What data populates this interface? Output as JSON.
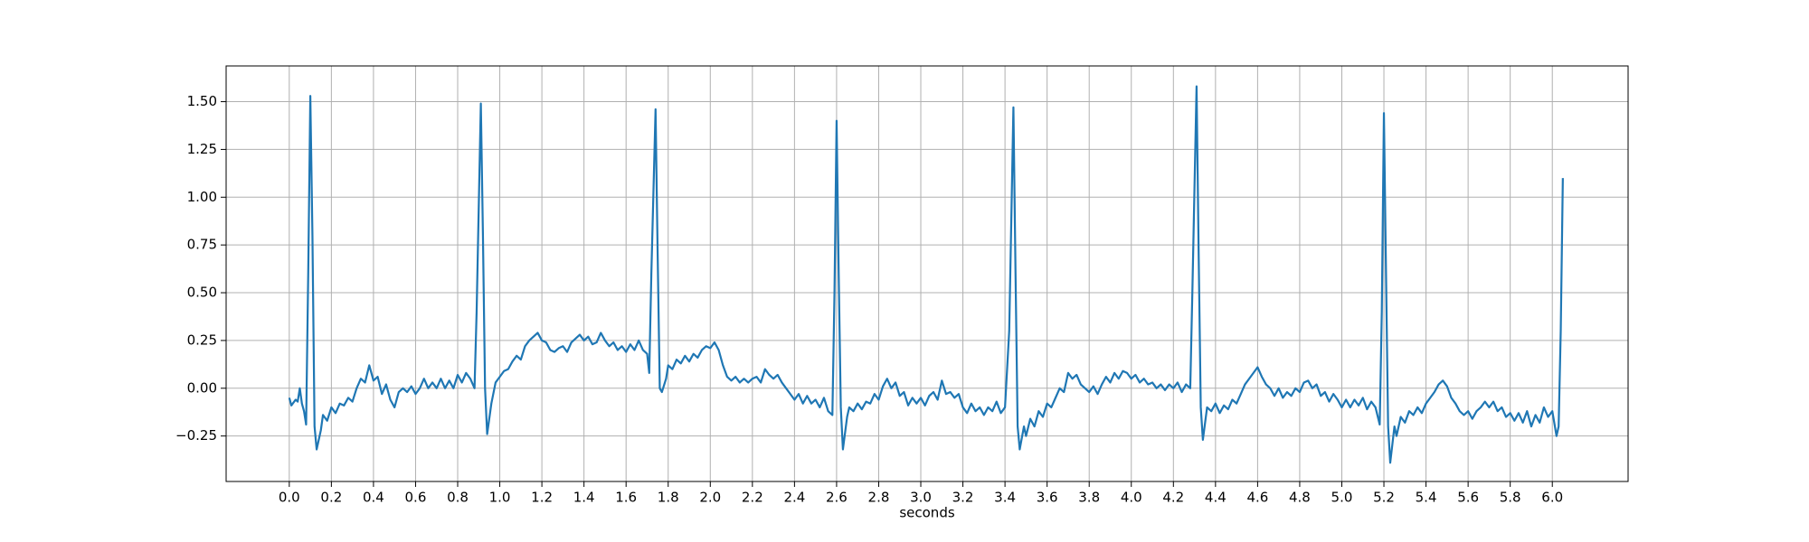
{
  "chart_data": {
    "type": "line",
    "xlabel": "seconds",
    "color": "#1f77b4",
    "grid": true,
    "xlim": [
      -0.3,
      6.36
    ],
    "ylim": [
      -0.488,
      1.687
    ],
    "xticks": [
      {
        "value": 0,
        "label": "0.0"
      },
      {
        "value": 0.2,
        "label": "0.2"
      },
      {
        "value": 0.4,
        "label": "0.4"
      },
      {
        "value": 0.6,
        "label": "0.6"
      },
      {
        "value": 0.8,
        "label": "0.8"
      },
      {
        "value": 1,
        "label": "1.0"
      },
      {
        "value": 1.2,
        "label": "1.2"
      },
      {
        "value": 1.4,
        "label": "1.4"
      },
      {
        "value": 1.6,
        "label": "1.6"
      },
      {
        "value": 1.8,
        "label": "1.8"
      },
      {
        "value": 2,
        "label": "2.0"
      },
      {
        "value": 2.2,
        "label": "2.2"
      },
      {
        "value": 2.4,
        "label": "2.4"
      },
      {
        "value": 2.6,
        "label": "2.6"
      },
      {
        "value": 2.8,
        "label": "2.8"
      },
      {
        "value": 3,
        "label": "3.0"
      },
      {
        "value": 3.2,
        "label": "3.2"
      },
      {
        "value": 3.4,
        "label": "3.4"
      },
      {
        "value": 3.6,
        "label": "3.6"
      },
      {
        "value": 3.8,
        "label": "3.8"
      },
      {
        "value": 4,
        "label": "4.0"
      },
      {
        "value": 4.2,
        "label": "4.2"
      },
      {
        "value": 4.4,
        "label": "4.4"
      },
      {
        "value": 4.6,
        "label": "4.6"
      },
      {
        "value": 4.8,
        "label": "4.8"
      },
      {
        "value": 5,
        "label": "5.0"
      },
      {
        "value": 5.2,
        "label": "5.2"
      },
      {
        "value": 5.4,
        "label": "5.4"
      },
      {
        "value": 5.6,
        "label": "5.6"
      },
      {
        "value": 5.8,
        "label": "5.8"
      },
      {
        "value": 6,
        "label": "6.0"
      }
    ],
    "yticks": [
      {
        "value": -0.25,
        "label": "−0.25"
      },
      {
        "value": 0,
        "label": "0.00"
      },
      {
        "value": 0.25,
        "label": "0.25"
      },
      {
        "value": 0.5,
        "label": "0.50"
      },
      {
        "value": 0.75,
        "label": "0.75"
      },
      {
        "value": 1,
        "label": "1.00"
      },
      {
        "value": 1.25,
        "label": "1.25"
      },
      {
        "value": 1.5,
        "label": "1.50"
      }
    ],
    "x": [
      0.0,
      0.01,
      0.03,
      0.04,
      0.05,
      0.06,
      0.07,
      0.08,
      0.09,
      0.1,
      0.11,
      0.12,
      0.13,
      0.15,
      0.16,
      0.18,
      0.2,
      0.22,
      0.24,
      0.26,
      0.28,
      0.3,
      0.32,
      0.34,
      0.36,
      0.38,
      0.4,
      0.42,
      0.44,
      0.46,
      0.48,
      0.5,
      0.52,
      0.54,
      0.56,
      0.58,
      0.6,
      0.62,
      0.64,
      0.66,
      0.68,
      0.7,
      0.72,
      0.74,
      0.76,
      0.78,
      0.8,
      0.82,
      0.84,
      0.86,
      0.88,
      0.89,
      0.91,
      0.92,
      0.93,
      0.94,
      0.96,
      0.98,
      1.0,
      1.02,
      1.04,
      1.06,
      1.08,
      1.1,
      1.12,
      1.14,
      1.16,
      1.18,
      1.2,
      1.22,
      1.24,
      1.26,
      1.28,
      1.3,
      1.32,
      1.34,
      1.36,
      1.38,
      1.4,
      1.42,
      1.44,
      1.46,
      1.48,
      1.5,
      1.52,
      1.54,
      1.56,
      1.58,
      1.6,
      1.62,
      1.64,
      1.66,
      1.68,
      1.7,
      1.71,
      1.72,
      1.74,
      1.75,
      1.76,
      1.77,
      1.79,
      1.8,
      1.82,
      1.84,
      1.86,
      1.88,
      1.9,
      1.92,
      1.94,
      1.96,
      1.98,
      2.0,
      2.02,
      2.04,
      2.06,
      2.08,
      2.1,
      2.12,
      2.14,
      2.16,
      2.18,
      2.2,
      2.22,
      2.24,
      2.26,
      2.28,
      2.3,
      2.32,
      2.34,
      2.36,
      2.38,
      2.4,
      2.42,
      2.44,
      2.46,
      2.48,
      2.5,
      2.52,
      2.54,
      2.56,
      2.58,
      2.59,
      2.6,
      2.61,
      2.62,
      2.63,
      2.65,
      2.66,
      2.68,
      2.7,
      2.72,
      2.74,
      2.76,
      2.78,
      2.8,
      2.82,
      2.84,
      2.86,
      2.88,
      2.9,
      2.92,
      2.94,
      2.96,
      2.98,
      3.0,
      3.02,
      3.04,
      3.06,
      3.08,
      3.1,
      3.12,
      3.14,
      3.16,
      3.18,
      3.2,
      3.22,
      3.24,
      3.26,
      3.28,
      3.3,
      3.32,
      3.34,
      3.36,
      3.38,
      3.4,
      3.42,
      3.44,
      3.45,
      3.46,
      3.47,
      3.49,
      3.5,
      3.52,
      3.54,
      3.56,
      3.58,
      3.6,
      3.62,
      3.64,
      3.66,
      3.68,
      3.7,
      3.72,
      3.74,
      3.76,
      3.78,
      3.8,
      3.82,
      3.84,
      3.86,
      3.88,
      3.9,
      3.92,
      3.94,
      3.96,
      3.98,
      4.0,
      4.02,
      4.04,
      4.06,
      4.08,
      4.1,
      4.12,
      4.14,
      4.16,
      4.18,
      4.2,
      4.22,
      4.24,
      4.26,
      4.28,
      4.29,
      4.31,
      4.32,
      4.33,
      4.34,
      4.36,
      4.38,
      4.4,
      4.42,
      4.44,
      4.46,
      4.48,
      4.5,
      4.52,
      4.54,
      4.56,
      4.58,
      4.6,
      4.62,
      4.64,
      4.66,
      4.68,
      4.7,
      4.72,
      4.74,
      4.76,
      4.78,
      4.8,
      4.82,
      4.84,
      4.86,
      4.88,
      4.9,
      4.92,
      4.94,
      4.96,
      4.98,
      5.0,
      5.02,
      5.04,
      5.06,
      5.08,
      5.1,
      5.12,
      5.14,
      5.16,
      5.18,
      5.19,
      5.2,
      5.21,
      5.22,
      5.23,
      5.25,
      5.26,
      5.28,
      5.3,
      5.32,
      5.34,
      5.36,
      5.38,
      5.4,
      5.42,
      5.44,
      5.46,
      5.48,
      5.5,
      5.52,
      5.54,
      5.56,
      5.58,
      5.6,
      5.62,
      5.64,
      5.66,
      5.68,
      5.7,
      5.72,
      5.74,
      5.76,
      5.78,
      5.8,
      5.82,
      5.84,
      5.86,
      5.88,
      5.9,
      5.92,
      5.94,
      5.96,
      5.98,
      6.0,
      6.02,
      6.03,
      6.04,
      6.05
    ],
    "values": [
      -0.05,
      -0.09,
      -0.06,
      -0.07,
      0.0,
      -0.08,
      -0.12,
      -0.19,
      0.6,
      1.53,
      0.8,
      -0.2,
      -0.32,
      -0.22,
      -0.14,
      -0.17,
      -0.1,
      -0.13,
      -0.08,
      -0.09,
      -0.05,
      -0.07,
      0.0,
      0.05,
      0.03,
      0.12,
      0.04,
      0.06,
      -0.03,
      0.02,
      -0.06,
      -0.1,
      -0.02,
      0.0,
      -0.02,
      0.01,
      -0.03,
      0.0,
      0.05,
      0.0,
      0.03,
      0.0,
      0.05,
      0.0,
      0.04,
      0.0,
      0.07,
      0.03,
      0.08,
      0.05,
      0.0,
      0.4,
      1.49,
      0.8,
      0.0,
      -0.24,
      -0.08,
      0.03,
      0.06,
      0.09,
      0.1,
      0.14,
      0.17,
      0.15,
      0.22,
      0.25,
      0.27,
      0.29,
      0.25,
      0.24,
      0.2,
      0.19,
      0.21,
      0.22,
      0.19,
      0.24,
      0.26,
      0.28,
      0.25,
      0.27,
      0.23,
      0.24,
      0.29,
      0.25,
      0.22,
      0.24,
      0.2,
      0.22,
      0.19,
      0.23,
      0.2,
      0.25,
      0.2,
      0.18,
      0.08,
      0.6,
      1.46,
      0.7,
      0.0,
      -0.02,
      0.05,
      0.12,
      0.1,
      0.15,
      0.13,
      0.17,
      0.14,
      0.18,
      0.16,
      0.2,
      0.22,
      0.21,
      0.24,
      0.2,
      0.12,
      0.06,
      0.04,
      0.06,
      0.03,
      0.05,
      0.03,
      0.05,
      0.06,
      0.03,
      0.1,
      0.07,
      0.05,
      0.07,
      0.03,
      0.0,
      -0.03,
      -0.06,
      -0.03,
      -0.08,
      -0.04,
      -0.08,
      -0.06,
      -0.1,
      -0.05,
      -0.12,
      -0.14,
      0.5,
      1.4,
      0.6,
      -0.1,
      -0.32,
      -0.15,
      -0.1,
      -0.12,
      -0.08,
      -0.11,
      -0.07,
      -0.08,
      -0.03,
      -0.06,
      0.01,
      0.05,
      0.0,
      0.03,
      -0.04,
      -0.02,
      -0.09,
      -0.05,
      -0.08,
      -0.05,
      -0.09,
      -0.04,
      -0.02,
      -0.06,
      0.04,
      -0.03,
      -0.02,
      -0.05,
      -0.03,
      -0.1,
      -0.13,
      -0.08,
      -0.12,
      -0.1,
      -0.14,
      -0.1,
      -0.12,
      -0.07,
      -0.13,
      -0.1,
      0.3,
      1.47,
      0.6,
      -0.2,
      -0.32,
      -0.2,
      -0.25,
      -0.16,
      -0.2,
      -0.12,
      -0.15,
      -0.08,
      -0.1,
      -0.05,
      0.0,
      -0.02,
      0.08,
      0.05,
      0.07,
      0.02,
      0.0,
      -0.02,
      0.01,
      -0.03,
      0.02,
      0.06,
      0.03,
      0.08,
      0.05,
      0.09,
      0.08,
      0.05,
      0.07,
      0.03,
      0.05,
      0.02,
      0.03,
      0.0,
      0.02,
      -0.01,
      0.02,
      0.0,
      0.03,
      -0.02,
      0.02,
      0.0,
      0.5,
      1.58,
      0.7,
      -0.1,
      -0.27,
      -0.1,
      -0.12,
      -0.08,
      -0.13,
      -0.09,
      -0.11,
      -0.06,
      -0.08,
      -0.03,
      0.02,
      0.05,
      0.08,
      0.11,
      0.06,
      0.02,
      0.0,
      -0.04,
      0.0,
      -0.05,
      -0.02,
      -0.04,
      0.0,
      -0.02,
      0.03,
      0.04,
      0.0,
      0.02,
      -0.04,
      -0.02,
      -0.07,
      -0.03,
      -0.06,
      -0.1,
      -0.06,
      -0.1,
      -0.06,
      -0.09,
      -0.05,
      -0.11,
      -0.07,
      -0.1,
      -0.19,
      0.4,
      1.44,
      0.6,
      -0.2,
      -0.39,
      -0.2,
      -0.25,
      -0.15,
      -0.18,
      -0.12,
      -0.14,
      -0.1,
      -0.13,
      -0.08,
      -0.05,
      -0.02,
      0.02,
      0.04,
      0.01,
      -0.05,
      -0.08,
      -0.12,
      -0.14,
      -0.12,
      -0.16,
      -0.12,
      -0.1,
      -0.07,
      -0.1,
      -0.07,
      -0.12,
      -0.1,
      -0.15,
      -0.13,
      -0.17,
      -0.13,
      -0.18,
      -0.12,
      -0.2,
      -0.14,
      -0.18,
      -0.1,
      -0.15,
      -0.12,
      -0.25,
      -0.2,
      0.3,
      1.1
    ]
  }
}
